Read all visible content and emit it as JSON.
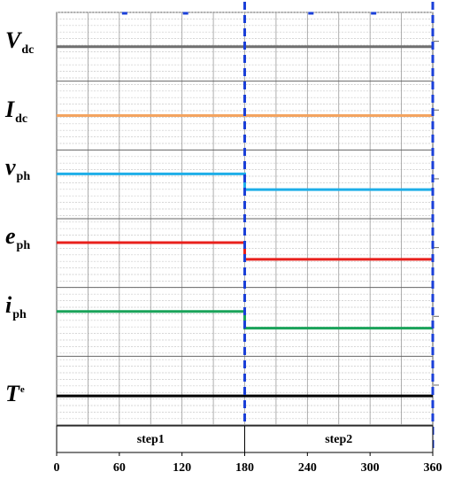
{
  "chart_data": {
    "type": "line",
    "x_range": [
      0,
      360
    ],
    "x_ticks": [
      "0",
      "60",
      "120",
      "180",
      "240",
      "300",
      "360"
    ],
    "grid": true,
    "step_markers": [
      180,
      360
    ],
    "phases": [
      {
        "label": "step1",
        "x_start": 0,
        "x_end": 180
      },
      {
        "label": "step2",
        "x_start": 180,
        "x_end": 360
      }
    ],
    "series": [
      {
        "symbol": "V",
        "subscript": "dc",
        "superscript": "",
        "color": "#707070",
        "y_range": [
          0,
          1
        ],
        "x": [
          0,
          180,
          180,
          360
        ],
        "y": [
          0.5,
          0.5,
          0.5,
          0.5
        ]
      },
      {
        "symbol": "I",
        "subscript": "dc",
        "superscript": "",
        "color": "#f4a460",
        "y_range": [
          0,
          1
        ],
        "x": [
          0,
          180,
          180,
          360
        ],
        "y": [
          0.5,
          0.5,
          0.5,
          0.5
        ]
      },
      {
        "symbol": "v",
        "subscript": "ph",
        "superscript": "",
        "color": "#1eaee8",
        "y_range": [
          0,
          1
        ],
        "x": [
          0,
          180,
          180,
          360
        ],
        "y": [
          0.7,
          0.7,
          0.4,
          0.4
        ]
      },
      {
        "symbol": "e",
        "subscript": "ph",
        "superscript": "",
        "color": "#e8201c",
        "y_range": [
          0,
          1
        ],
        "x": [
          0,
          180,
          180,
          360
        ],
        "y": [
          0.7,
          0.7,
          0.38,
          0.38
        ]
      },
      {
        "symbol": "i",
        "subscript": "ph",
        "superscript": "",
        "color": "#1aa35a",
        "y_range": [
          0,
          1
        ],
        "x": [
          0,
          180,
          180,
          360
        ],
        "y": [
          0.7,
          0.7,
          0.38,
          0.38
        ]
      },
      {
        "symbol": "T",
        "subscript": "",
        "superscript": "e",
        "color": "#000000",
        "y_range": [
          0,
          1
        ],
        "x": [
          0,
          180,
          180,
          360
        ],
        "y": [
          0.4,
          0.4,
          0.4,
          0.4
        ]
      }
    ]
  }
}
